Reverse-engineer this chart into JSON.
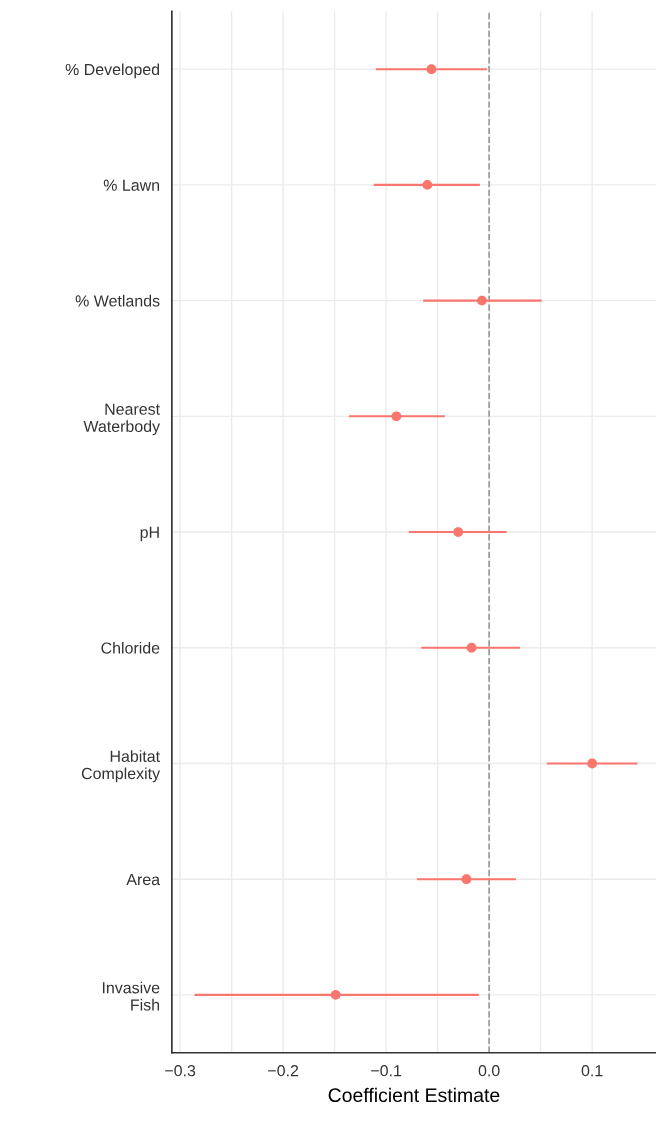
{
  "chart_data": {
    "type": "scatter",
    "orientation": "horizontal",
    "xlabel": "Coefficient Estimate",
    "categories": [
      "% Developed",
      "% Lawn",
      "% Wetlands",
      "Nearest\nWaterbody",
      "pH",
      "Chloride",
      "Habitat\nComplexity",
      "Area",
      "Invasive\nFish"
    ],
    "series": [
      {
        "color": "#f8766d",
        "values": [
          -0.056,
          -0.06,
          -0.007,
          -0.09,
          -0.03,
          -0.017,
          0.1,
          -0.022,
          -0.149
        ],
        "errors": [
          [
            -0.11,
            -0.002
          ],
          [
            -0.112,
            -0.009
          ],
          [
            -0.064,
            0.051
          ],
          [
            -0.136,
            -0.043
          ],
          [
            -0.078,
            0.017
          ],
          [
            -0.066,
            0.03
          ],
          [
            0.056,
            0.144
          ],
          [
            -0.07,
            0.026
          ],
          [
            -0.286,
            -0.01
          ]
        ]
      }
    ],
    "xlim": [
      -0.308,
      0.162
    ],
    "xticks": [
      {
        "value": -0.3,
        "label": "−0.3"
      },
      {
        "value": -0.2,
        "label": "−0.2"
      },
      {
        "value": -0.1,
        "label": "−0.1"
      },
      {
        "value": 0.0,
        "label": "0.0"
      },
      0.1
    ],
    "ref_lines": [
      {
        "axis": "x",
        "value": 0,
        "color": "#999999",
        "line_style": "dashed"
      }
    ],
    "grid": true,
    "marker": "circle"
  }
}
